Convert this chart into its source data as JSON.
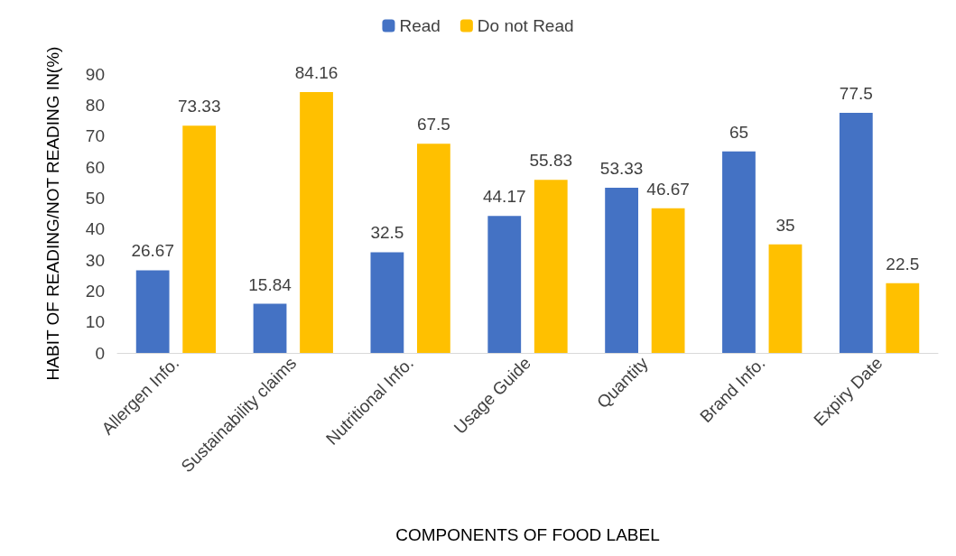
{
  "chart_data": {
    "type": "bar",
    "categories": [
      "Allergen Info.",
      "Sustainability claims",
      "Nutritional Info.",
      "Usage Guide",
      "Quantity",
      "Brand Info.",
      "Expiry Date"
    ],
    "series": [
      {
        "name": "Read",
        "color": "#4472c4",
        "values": [
          26.67,
          15.84,
          32.5,
          44.17,
          53.33,
          65,
          77.5
        ]
      },
      {
        "name": "Do not Read",
        "color": "#ffc000",
        "values": [
          73.33,
          84.16,
          67.5,
          55.83,
          46.67,
          35,
          22.5
        ]
      }
    ],
    "xlabel": "COMPONENTS OF FOOD LABEL",
    "ylabel": "HABIT OF READING/NOT READING IN(%)",
    "ylim": [
      0,
      90
    ],
    "yticks": [
      0,
      10,
      20,
      30,
      40,
      50,
      60,
      70,
      80,
      90
    ],
    "grid": false,
    "legend": "top",
    "data_labels": true
  }
}
